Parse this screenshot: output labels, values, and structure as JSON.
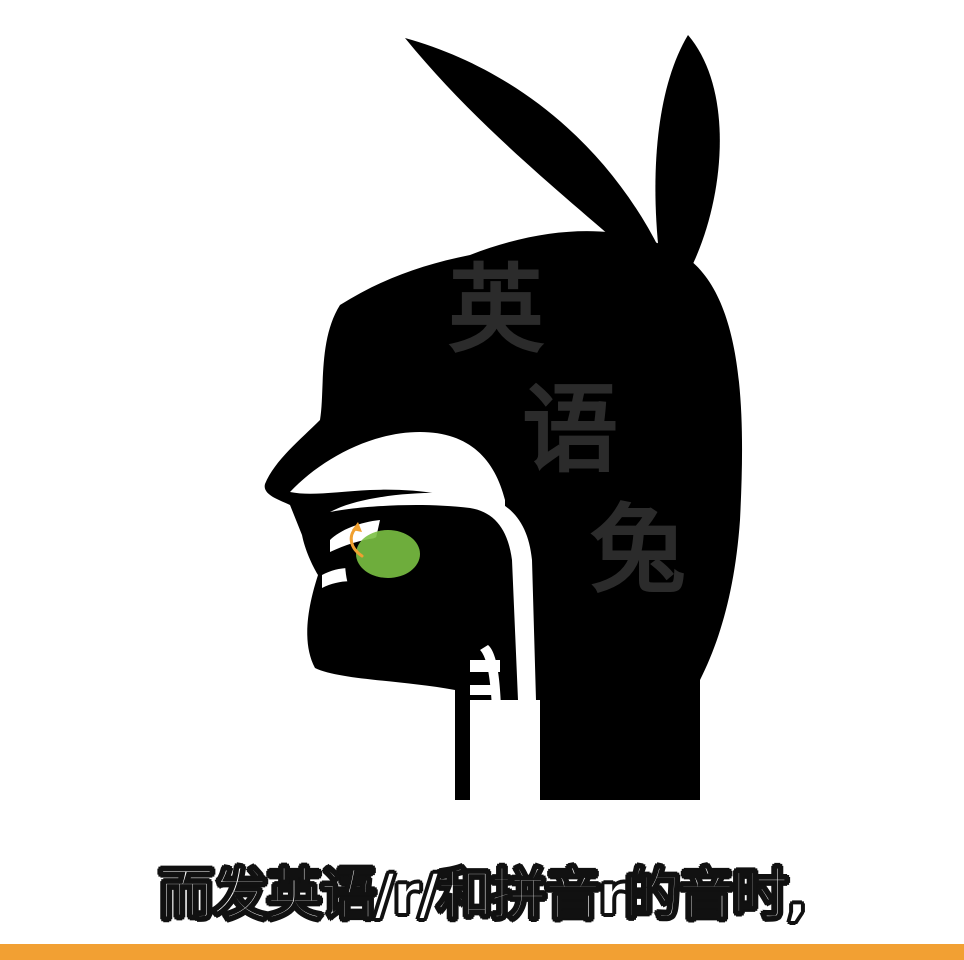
{
  "watermark": {
    "char1": "英",
    "char2": "语",
    "char3": "兔"
  },
  "subtitle": {
    "text": "而发英语/r/和拼音r的音时,"
  },
  "colors": {
    "silhouette": "#000000",
    "background": "#ffffff",
    "tongue_highlight": "#7ac043",
    "arrow": "#f0a030",
    "bottom_bar": "#f2a033"
  },
  "icons": {
    "figure": "rabbit-head-sagittal-section-icon",
    "arrow": "curved-arrow-icon"
  }
}
